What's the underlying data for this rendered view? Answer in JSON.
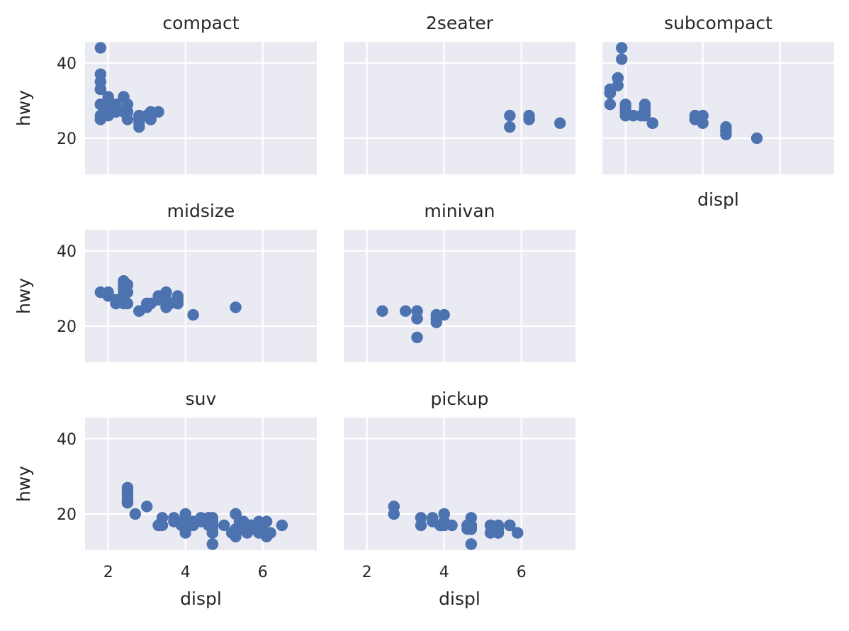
{
  "chart_data": {
    "type": "scatter",
    "xlabel": "displ",
    "ylabel": "hwy",
    "xlim": [
      1.4,
      7.4
    ],
    "ylim": [
      10.4,
      45.6
    ],
    "x_ticks": [
      2,
      4,
      6
    ],
    "y_ticks": [
      20,
      40
    ],
    "grid": true,
    "facets": [
      {
        "title": "compact",
        "points": [
          [
            1.8,
            29
          ],
          [
            1.8,
            29
          ],
          [
            2.0,
            31
          ],
          [
            2.0,
            30
          ],
          [
            2.8,
            26
          ],
          [
            2.8,
            26
          ],
          [
            3.1,
            27
          ],
          [
            1.8,
            26
          ],
          [
            1.8,
            25
          ],
          [
            2.0,
            28
          ],
          [
            2.0,
            27
          ],
          [
            2.8,
            25
          ],
          [
            2.8,
            25
          ],
          [
            3.1,
            25
          ],
          [
            3.1,
            25
          ],
          [
            2.2,
            27
          ],
          [
            2.2,
            29
          ],
          [
            2.4,
            31
          ],
          [
            2.4,
            31
          ],
          [
            3.0,
            26
          ],
          [
            3.0,
            26
          ],
          [
            3.3,
            27
          ],
          [
            1.8,
            37
          ],
          [
            1.8,
            35
          ],
          [
            1.8,
            33
          ],
          [
            1.8,
            33
          ],
          [
            2.0,
            29
          ],
          [
            2.0,
            29
          ],
          [
            2.0,
            28
          ],
          [
            2.0,
            29
          ],
          [
            2.5,
            27
          ],
          [
            2.5,
            25
          ],
          [
            2.5,
            29
          ],
          [
            2.4,
            27
          ],
          [
            1.8,
            44
          ],
          [
            2.0,
            26
          ],
          [
            2.8,
            23
          ],
          [
            2.8,
            24
          ],
          [
            3.1,
            26
          ]
        ]
      },
      {
        "title": "2seater",
        "points": [
          [
            5.7,
            26
          ],
          [
            5.7,
            23
          ],
          [
            6.2,
            26
          ],
          [
            6.2,
            25
          ],
          [
            7.0,
            24
          ]
        ]
      },
      {
        "title": "subcompact",
        "points": [
          [
            3.8,
            26
          ],
          [
            3.8,
            25
          ],
          [
            4.0,
            26
          ],
          [
            4.0,
            24
          ],
          [
            4.6,
            21
          ],
          [
            4.6,
            22
          ],
          [
            4.6,
            23
          ],
          [
            4.6,
            22
          ],
          [
            5.4,
            20
          ],
          [
            1.6,
            33
          ],
          [
            1.6,
            32
          ],
          [
            1.6,
            32
          ],
          [
            1.6,
            29
          ],
          [
            1.6,
            32
          ],
          [
            1.8,
            34
          ],
          [
            1.8,
            36
          ],
          [
            1.8,
            36
          ],
          [
            2.0,
            29
          ],
          [
            2.0,
            26
          ],
          [
            2.0,
            27
          ],
          [
            2.0,
            27
          ],
          [
            2.5,
            29
          ],
          [
            2.5,
            26
          ],
          [
            2.5,
            27
          ],
          [
            2.7,
            24
          ],
          [
            2.7,
            24
          ],
          [
            1.9,
            44
          ],
          [
            1.9,
            41
          ],
          [
            2.2,
            26
          ],
          [
            2.5,
            28
          ],
          [
            2.5,
            27
          ],
          [
            2.0,
            28
          ],
          [
            2.4,
            26
          ]
        ]
      },
      {
        "title": "midsize",
        "points": [
          [
            2.4,
            30
          ],
          [
            2.4,
            31
          ],
          [
            3.1,
            26
          ],
          [
            3.5,
            29
          ],
          [
            3.6,
            26
          ],
          [
            3.8,
            26
          ],
          [
            3.8,
            27
          ],
          [
            4.2,
            23
          ],
          [
            5.3,
            25
          ],
          [
            2.4,
            27
          ],
          [
            2.4,
            30
          ],
          [
            3.0,
            26
          ],
          [
            3.0,
            26
          ],
          [
            3.5,
            29
          ],
          [
            3.5,
            26
          ],
          [
            1.8,
            29
          ],
          [
            2.0,
            29
          ],
          [
            2.0,
            28
          ],
          [
            2.4,
            29
          ],
          [
            2.4,
            32
          ],
          [
            2.5,
            29
          ],
          [
            2.5,
            26
          ],
          [
            2.8,
            24
          ],
          [
            2.8,
            24
          ],
          [
            3.3,
            27
          ],
          [
            3.3,
            28
          ],
          [
            3.0,
            26
          ],
          [
            3.5,
            25
          ],
          [
            2.2,
            26
          ],
          [
            2.2,
            26
          ],
          [
            2.4,
            26
          ],
          [
            2.4,
            28
          ],
          [
            3.0,
            25
          ],
          [
            3.5,
            27
          ],
          [
            2.2,
            27
          ],
          [
            2.4,
            30
          ],
          [
            3.6,
            26
          ],
          [
            3.8,
            28
          ],
          [
            3.8,
            26
          ],
          [
            2.5,
            31
          ],
          [
            3.1,
            26
          ]
        ]
      },
      {
        "title": "minivan",
        "points": [
          [
            2.4,
            24
          ],
          [
            3.0,
            24
          ],
          [
            3.3,
            22
          ],
          [
            3.3,
            22
          ],
          [
            3.3,
            24
          ],
          [
            3.3,
            24
          ],
          [
            3.3,
            17
          ],
          [
            3.8,
            22
          ],
          [
            3.8,
            21
          ],
          [
            3.8,
            23
          ],
          [
            4.0,
            23
          ]
        ]
      },
      {
        "title": "suv",
        "points": [
          [
            5.3,
            20
          ],
          [
            5.3,
            15
          ],
          [
            5.3,
            20
          ],
          [
            5.7,
            17
          ],
          [
            6.0,
            17
          ],
          [
            5.7,
            16
          ],
          [
            6.2,
            15
          ],
          [
            5.3,
            16
          ],
          [
            5.7,
            17
          ],
          [
            6.5,
            17
          ],
          [
            3.7,
            19
          ],
          [
            3.7,
            18
          ],
          [
            3.9,
            17
          ],
          [
            3.9,
            17
          ],
          [
            4.7,
            12
          ],
          [
            4.7,
            17
          ],
          [
            4.7,
            17
          ],
          [
            5.2,
            15
          ],
          [
            5.7,
            17
          ],
          [
            5.9,
            15
          ],
          [
            4.0,
            17
          ],
          [
            4.0,
            19
          ],
          [
            4.0,
            17
          ],
          [
            4.0,
            19
          ],
          [
            4.6,
            19
          ],
          [
            5.0,
            17
          ],
          [
            4.2,
            17
          ],
          [
            4.4,
            18
          ],
          [
            4.6,
            17
          ],
          [
            5.4,
            17
          ],
          [
            5.4,
            18
          ],
          [
            5.4,
            17
          ],
          [
            4.0,
            17
          ],
          [
            4.0,
            19
          ],
          [
            4.0,
            19
          ],
          [
            4.7,
            17
          ],
          [
            4.7,
            19
          ],
          [
            4.7,
            16
          ],
          [
            5.7,
            16
          ],
          [
            6.1,
            14
          ],
          [
            4.0,
            20
          ],
          [
            4.2,
            18
          ],
          [
            4.4,
            19
          ],
          [
            4.6,
            19
          ],
          [
            5.4,
            18
          ],
          [
            4.7,
            15
          ],
          [
            4.7,
            17
          ],
          [
            5.7,
            16
          ],
          [
            2.5,
            23
          ],
          [
            2.5,
            23
          ],
          [
            2.5,
            24
          ],
          [
            2.5,
            25
          ],
          [
            2.5,
            26
          ],
          [
            2.5,
            27
          ],
          [
            2.7,
            20
          ],
          [
            3.0,
            22
          ],
          [
            3.3,
            17
          ],
          [
            3.4,
            19
          ],
          [
            4.0,
            20
          ],
          [
            4.7,
            12
          ],
          [
            4.7,
            18
          ],
          [
            3.4,
            17
          ],
          [
            4.0,
            15
          ],
          [
            4.0,
            17
          ],
          [
            4.7,
            15
          ],
          [
            5.7,
            16
          ],
          [
            5.3,
            14
          ],
          [
            5.5,
            18
          ],
          [
            5.6,
            15
          ],
          [
            3.3,
            17
          ],
          [
            3.8,
            18
          ],
          [
            4.0,
            16
          ],
          [
            4.6,
            18
          ],
          [
            5.4,
            17
          ],
          [
            5.4,
            16
          ],
          [
            6.1,
            18
          ],
          [
            5.3,
            20
          ],
          [
            5.9,
            18
          ]
        ]
      },
      {
        "title": "pickup",
        "points": [
          [
            3.7,
            19
          ],
          [
            3.7,
            18
          ],
          [
            3.9,
            17
          ],
          [
            3.9,
            17
          ],
          [
            4.7,
            12
          ],
          [
            4.7,
            17
          ],
          [
            4.7,
            17
          ],
          [
            5.2,
            15
          ],
          [
            5.2,
            17
          ],
          [
            5.7,
            17
          ],
          [
            5.9,
            15
          ],
          [
            4.7,
            16
          ],
          [
            4.7,
            16
          ],
          [
            4.7,
            12
          ],
          [
            4.7,
            16
          ],
          [
            4.7,
            19
          ],
          [
            4.7,
            17
          ],
          [
            5.2,
            17
          ],
          [
            5.7,
            17
          ],
          [
            4.2,
            17
          ],
          [
            4.6,
            17
          ],
          [
            4.6,
            16
          ],
          [
            4.6,
            17
          ],
          [
            5.4,
            17
          ],
          [
            5.4,
            15
          ],
          [
            2.7,
            20
          ],
          [
            2.7,
            20
          ],
          [
            2.7,
            22
          ],
          [
            3.4,
            17
          ],
          [
            3.4,
            19
          ],
          [
            4.0,
            18
          ],
          [
            4.0,
            20
          ],
          [
            4.7,
            17
          ],
          [
            4.0,
            17
          ],
          [
            4.0,
            17
          ],
          [
            4.0,
            20
          ],
          [
            4.6,
            17
          ],
          [
            5.4,
            15
          ],
          [
            5.4,
            16
          ],
          [
            5.7,
            17
          ]
        ]
      }
    ]
  }
}
